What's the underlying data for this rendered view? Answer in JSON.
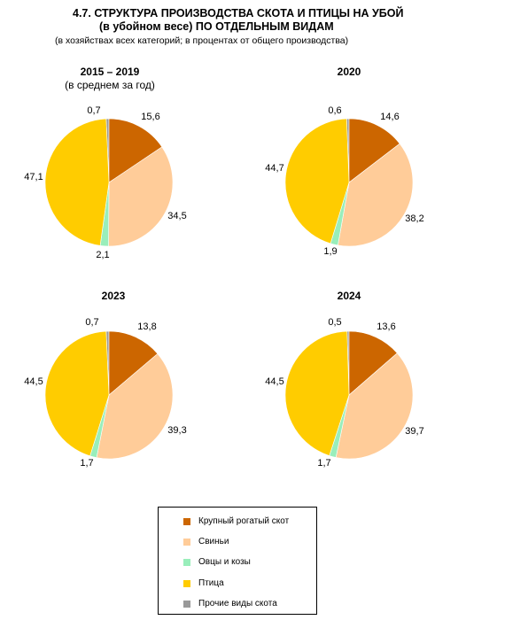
{
  "header": {
    "title_line1": "4.7. СТРУКТУРА ПРОИЗВОДСТВА СКОТА И ПТИЦЫ НА УБОЙ",
    "title_line2": "(в убойном весе) ПО ОТДЕЛЬНЫМ ВИДАМ",
    "subtitle": "(в хозяйствах всех категорий; в процентах от общего производства)"
  },
  "colors": {
    "cattle": "#cc6600",
    "pigs": "#ffcc99",
    "sheep": "#99eebb",
    "poultry": "#ffcc00",
    "other": "#999999"
  },
  "legend": [
    {
      "label": "Крупный рогатый скот",
      "color": "#cc6600"
    },
    {
      "label": "Свиньи",
      "color": "#ffcc99"
    },
    {
      "label": "Овцы и козы",
      "color": "#99eebb"
    },
    {
      "label": "Птица",
      "color": "#ffcc00"
    },
    {
      "label": "Прочие виды скота",
      "color": "#999999"
    }
  ],
  "chart_data": [
    {
      "type": "pie",
      "title": "2015 – 2019",
      "subtitle": "(в среднем за год)",
      "categories": [
        "Крупный рогатый скот",
        "Свиньи",
        "Овцы и козы",
        "Птица",
        "Прочие виды скота"
      ],
      "values": [
        15.6,
        34.5,
        2.1,
        47.1,
        0.7
      ],
      "labels": [
        "15,6",
        "34,5",
        "2,1",
        "47,1",
        "0,7"
      ]
    },
    {
      "type": "pie",
      "title": "2020",
      "subtitle": "",
      "categories": [
        "Крупный рогатый скот",
        "Свиньи",
        "Овцы и козы",
        "Птица",
        "Прочие виды скота"
      ],
      "values": [
        14.6,
        38.2,
        1.9,
        44.7,
        0.6
      ],
      "labels": [
        "14,6",
        "38,2",
        "1,9",
        "44,7",
        "0,6"
      ]
    },
    {
      "type": "pie",
      "title": "2023",
      "subtitle": "",
      "categories": [
        "Крупный рогатый скот",
        "Свиньи",
        "Овцы и козы",
        "Птица",
        "Прочие виды скота"
      ],
      "values": [
        13.8,
        39.3,
        1.7,
        44.5,
        0.7
      ],
      "labels": [
        "13,8",
        "39,3",
        "1,7",
        "44,5",
        "0,7"
      ]
    },
    {
      "type": "pie",
      "title": "2024",
      "subtitle": "",
      "categories": [
        "Крупный рогатый скот",
        "Свиньи",
        "Овцы и козы",
        "Птица",
        "Прочие виды скота"
      ],
      "values": [
        13.6,
        39.7,
        1.7,
        44.5,
        0.5
      ],
      "labels": [
        "13,6",
        "39,7",
        "1,7",
        "44,5",
        "0,5"
      ]
    }
  ]
}
